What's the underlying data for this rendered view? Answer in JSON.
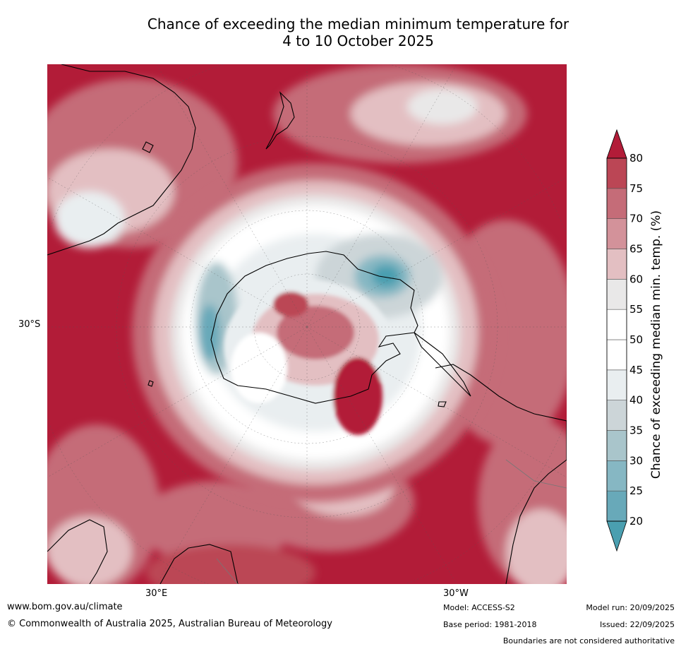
{
  "title": {
    "line1": "Chance of exceeding the median minimum temperature for",
    "line2": "4 to 10 October 2025"
  },
  "map": {
    "projection": "South polar stereographic",
    "lat_labels": [
      "30°S"
    ],
    "lon_labels": [
      "30°E",
      "30°W"
    ]
  },
  "colorbar": {
    "label": "Chance of exceeding median min. temp. (%)",
    "ticks": [
      "20",
      "25",
      "30",
      "35",
      "40",
      "45",
      "50",
      "55",
      "60",
      "65",
      "70",
      "75",
      "80"
    ],
    "colors": {
      "below20": "#4a9fb0",
      "20-25": "#68a9b9",
      "25-30": "#86b7c3",
      "30-35": "#a9c5cb",
      "35-40": "#ccd5d8",
      "40-45": "#e9eef0",
      "45-55": "#ffffff",
      "55-60": "#e9e8e8",
      "60-65": "#e3bfc2",
      "65-70": "#d3929a",
      "70-75": "#c56c78",
      "75-80": "#bb4655",
      "above80": "#b21c38"
    }
  },
  "footer": {
    "url": "www.bom.gov.au/climate",
    "copyright": "© Commonwealth of Australia 2025, Australian Bureau of Meteorology",
    "model": "Model: ACCESS-S2",
    "base_period": "Base period: 1981-2018",
    "model_run": "Model run: 20/09/2025",
    "issued": "Issued: 22/09/2025",
    "disclaimer": "Boundaries are not considered authoritative"
  }
}
